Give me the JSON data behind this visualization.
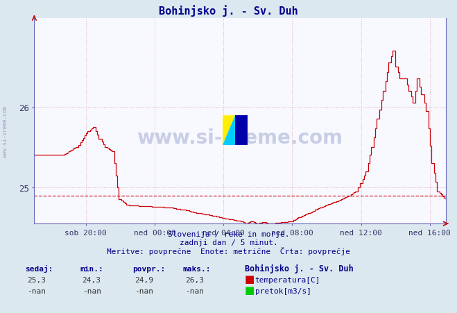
{
  "title": "Bohinjsko j. - Sv. Duh",
  "bg_color": "#dce8f0",
  "plot_bg_color": "#f8f8ff",
  "line_color": "#cc0000",
  "avg_value": 24.9,
  "y_min": 24.55,
  "y_max": 27.1,
  "y_ticks": [
    25,
    26
  ],
  "x_labels": [
    "sob 20:00",
    "ned 00:00",
    "ned 04:00",
    "ned 08:00",
    "ned 12:00",
    "ned 16:00"
  ],
  "total_points": 288,
  "footer_line1": "Slovenija / reke in morje.",
  "footer_line2": "zadnji dan / 5 minut.",
  "footer_line3": "Meritve: povprečne  Enote: metrične  Črta: povprečje",
  "legend_title": "Bohinjsko j. - Sv. Duh",
  "sedaj": "25,3",
  "min_val": "24,3",
  "povpr": "24,9",
  "maks": "26,3",
  "label_temp": "temperatura[C]",
  "label_pretok": "pretok[m3/s]",
  "watermark": "www.si-vreme.com",
  "sidebar_text": "www.si-vreme.com"
}
